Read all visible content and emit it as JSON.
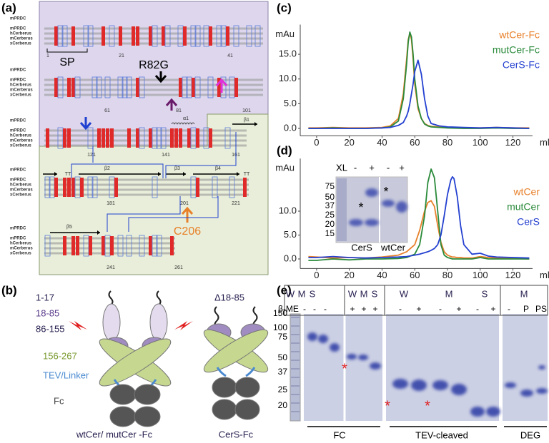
{
  "panel_labels": [
    "(a)",
    "(b)",
    "(c)",
    "(d)",
    "(e)"
  ],
  "alignment": {
    "sequence_names": [
      "mPRDC",
      "hCerberus",
      "mCerberus",
      "xCerberus"
    ],
    "positions": [
      1,
      21,
      41,
      61,
      81,
      101,
      121,
      141,
      161,
      181,
      201,
      221,
      241,
      261
    ],
    "signal_peptide": "SP",
    "mutation": "R82G",
    "cysteine": "C206",
    "secondary_structure": [
      "α1",
      "β1",
      "β2",
      "β3",
      "β4",
      "β5",
      "TT",
      "TT"
    ]
  },
  "domains": {
    "labels": [
      "1-17",
      "18-85",
      "86-155",
      "156-267",
      "TEV/Linker",
      "Fc"
    ],
    "deletion": "Δ18-85",
    "constructs": [
      "wtCer/ mutCer -Fc",
      "CerS-Fc"
    ]
  },
  "chart_data": [
    {
      "type": "line",
      "ylabel": "mAu",
      "xlabel": "ml",
      "x": [
        -5,
        0,
        10,
        20,
        30,
        40,
        45,
        50,
        53,
        55,
        56,
        57,
        58,
        59,
        60,
        62,
        64,
        66,
        68,
        70,
        75,
        80,
        90,
        100,
        110,
        120,
        130
      ],
      "xlim": [
        -10,
        132
      ],
      "ylim": [
        -1.5,
        21
      ],
      "xticks": [
        0,
        20,
        40,
        60,
        80,
        100,
        120
      ],
      "yticks": [
        {
          "value": 0,
          "label": "0.0"
        },
        {
          "value": 5,
          "label": "5.0"
        },
        {
          "value": 10,
          "label": "10.0"
        },
        {
          "value": 15,
          "label": "15.0"
        }
      ],
      "series": [
        {
          "name": "wtCer-Fc",
          "color": "#e8802a",
          "values": [
            0.1,
            0.1,
            0.2,
            0.1,
            0.1,
            0.2,
            0.5,
            2.0,
            7,
            14,
            18,
            19.2,
            18,
            14,
            9,
            4,
            2,
            1,
            0.6,
            0.4,
            0.3,
            0.2,
            0.1,
            0.1,
            0.2,
            0.1,
            0.1
          ]
        },
        {
          "name": "mutCer-Fc",
          "color": "#2a8a3a",
          "values": [
            0,
            0,
            0.1,
            0,
            0,
            0.1,
            0.3,
            1.5,
            6,
            13,
            17.5,
            19.5,
            18.5,
            15,
            10,
            4.5,
            2,
            0.9,
            0.5,
            0.3,
            0.2,
            0.1,
            0,
            0,
            0.1,
            0,
            0
          ]
        },
        {
          "name": "CerS-Fc",
          "color": "#2440d0",
          "values": [
            0,
            0,
            0,
            0,
            0,
            0.1,
            0.2,
            0.6,
            1.2,
            2.5,
            3.5,
            5,
            7,
            9,
            11.5,
            13.8,
            11,
            6,
            2.5,
            1,
            0.5,
            0.3,
            0.2,
            0.1,
            0.2,
            0.1,
            0
          ]
        }
      ]
    },
    {
      "type": "line",
      "ylabel": "mAu",
      "xlabel": "ml",
      "x": [
        -5,
        0,
        10,
        20,
        30,
        40,
        50,
        55,
        60,
        63,
        66,
        68,
        70,
        72,
        74,
        76,
        78,
        80,
        82,
        83,
        84,
        86,
        88,
        90,
        95,
        100,
        105,
        110,
        120,
        130
      ],
      "xlim": [
        -10,
        132
      ],
      "ylim": [
        -2,
        21
      ],
      "xticks": [
        0,
        20,
        40,
        60,
        80,
        100,
        120
      ],
      "yticks": [
        {
          "value": 0,
          "label": "0.0"
        },
        {
          "value": 5,
          "label": "5.0"
        },
        {
          "value": 10,
          "label": "10.0"
        }
      ],
      "series": [
        {
          "name": "wtCer",
          "color": "#e8802a",
          "values": [
            0.5,
            0.4,
            0.2,
            0.3,
            0.2,
            0.4,
            0.8,
            1.5,
            3,
            6,
            10,
            11.8,
            12.2,
            11,
            7,
            3.5,
            1.5,
            0.8,
            0.5,
            0.4,
            0.4,
            0.3,
            0.3,
            0.2,
            0.2,
            0.5,
            0.3,
            0.2,
            0.1,
            0
          ]
        },
        {
          "name": "mutCer",
          "color": "#2a8a3a",
          "values": [
            -0.3,
            -0.3,
            0,
            -0.2,
            0,
            0,
            0.1,
            0.3,
            1,
            3,
            9,
            16,
            18.8,
            17,
            10,
            3,
            0.8,
            0.3,
            0.1,
            0,
            0,
            0,
            0,
            0,
            0,
            0.3,
            0,
            0,
            0,
            0
          ]
        },
        {
          "name": "CerS",
          "color": "#2440d0",
          "values": [
            0.3,
            0.3,
            0.5,
            0.3,
            0.2,
            0.3,
            0.4,
            0.5,
            0.8,
            1,
            1.3,
            1.5,
            1.8,
            2.2,
            3,
            5,
            9,
            13.5,
            16.5,
            17.2,
            16.8,
            13,
            7,
            3,
            1,
            1.2,
            0.6,
            0.4,
            0.3,
            0.2
          ]
        }
      ]
    }
  ],
  "inset_gel": {
    "condition": "XL",
    "lanes": [
      "-",
      "+",
      "-",
      "+"
    ],
    "markers": [
      75,
      50,
      37,
      25,
      20,
      15
    ],
    "samples": [
      "CerS",
      "wtCer"
    ],
    "marks": [
      "*",
      "*"
    ]
  },
  "gel": {
    "groups": [
      "W",
      "M",
      "S",
      "W",
      "M",
      "S",
      "W",
      "M",
      "S",
      "M"
    ],
    "reducing_label": "β-ME",
    "reducing": [
      "-",
      "-",
      "-",
      "+",
      "+",
      "+",
      "-",
      "+",
      "-",
      "+",
      "-",
      "+",
      "-",
      "P",
      "PS"
    ],
    "markers": [
      150,
      100,
      75,
      50,
      37,
      25,
      20
    ],
    "sections": [
      "FC",
      "TEV-cleaved",
      "DEG"
    ],
    "asterisks": [
      "*",
      "*",
      "*"
    ]
  }
}
